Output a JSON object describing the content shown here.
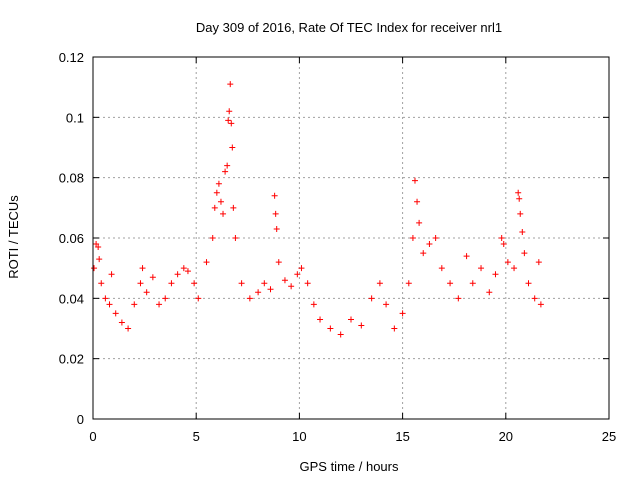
{
  "chart_data": {
    "type": "scatter",
    "title": "Day 309 of 2016, Rate Of TEC Index for receiver nrl1",
    "xlabel": "GPS time / hours",
    "ylabel": "ROTI / TECUs",
    "xlim": [
      0,
      25
    ],
    "ylim": [
      0,
      0.12
    ],
    "x_ticks": [
      0,
      5,
      10,
      15,
      20,
      25
    ],
    "x_tick_labels": [
      "0",
      "5",
      "10",
      "15",
      "20",
      "25"
    ],
    "y_ticks": [
      0,
      0.02,
      0.04,
      0.06,
      0.08,
      0.1,
      0.12
    ],
    "y_tick_labels": [
      "0",
      "0.02",
      "0.04",
      "0.06",
      "0.08",
      "0.1",
      "0.12"
    ],
    "grid": true,
    "marker": "+",
    "marker_color": "#ff0000",
    "series": [
      {
        "points": [
          [
            0.05,
            0.05
          ],
          [
            0.15,
            0.058
          ],
          [
            0.25,
            0.057
          ],
          [
            0.3,
            0.053
          ],
          [
            0.4,
            0.045
          ],
          [
            0.6,
            0.04
          ],
          [
            0.8,
            0.038
          ],
          [
            0.9,
            0.048
          ],
          [
            1.1,
            0.035
          ],
          [
            1.4,
            0.032
          ],
          [
            1.7,
            0.03
          ],
          [
            2.0,
            0.038
          ],
          [
            2.3,
            0.045
          ],
          [
            2.4,
            0.05
          ],
          [
            2.6,
            0.042
          ],
          [
            2.9,
            0.047
          ],
          [
            3.2,
            0.038
          ],
          [
            3.5,
            0.04
          ],
          [
            3.8,
            0.045
          ],
          [
            4.1,
            0.048
          ],
          [
            4.4,
            0.05
          ],
          [
            4.6,
            0.049
          ],
          [
            4.9,
            0.045
          ],
          [
            5.1,
            0.04
          ],
          [
            5.5,
            0.052
          ],
          [
            5.8,
            0.06
          ],
          [
            5.9,
            0.07
          ],
          [
            6.0,
            0.075
          ],
          [
            6.1,
            0.078
          ],
          [
            6.2,
            0.072
          ],
          [
            6.3,
            0.068
          ],
          [
            6.4,
            0.082
          ],
          [
            6.5,
            0.084
          ],
          [
            6.55,
            0.099
          ],
          [
            6.6,
            0.102
          ],
          [
            6.65,
            0.111
          ],
          [
            6.7,
            0.098
          ],
          [
            6.75,
            0.09
          ],
          [
            6.8,
            0.07
          ],
          [
            6.9,
            0.06
          ],
          [
            7.2,
            0.045
          ],
          [
            7.6,
            0.04
          ],
          [
            8.0,
            0.042
          ],
          [
            8.3,
            0.045
          ],
          [
            8.6,
            0.043
          ],
          [
            8.8,
            0.074
          ],
          [
            8.85,
            0.068
          ],
          [
            8.9,
            0.063
          ],
          [
            9.0,
            0.052
          ],
          [
            9.3,
            0.046
          ],
          [
            9.6,
            0.044
          ],
          [
            9.9,
            0.048
          ],
          [
            10.1,
            0.05
          ],
          [
            10.4,
            0.045
          ],
          [
            10.7,
            0.038
          ],
          [
            11.0,
            0.033
          ],
          [
            11.5,
            0.03
          ],
          [
            12.0,
            0.028
          ],
          [
            12.5,
            0.033
          ],
          [
            13.0,
            0.031
          ],
          [
            13.5,
            0.04
          ],
          [
            13.9,
            0.045
          ],
          [
            14.2,
            0.038
          ],
          [
            14.6,
            0.03
          ],
          [
            15.0,
            0.035
          ],
          [
            15.3,
            0.045
          ],
          [
            15.5,
            0.06
          ],
          [
            15.6,
            0.079
          ],
          [
            15.7,
            0.072
          ],
          [
            15.8,
            0.065
          ],
          [
            16.0,
            0.055
          ],
          [
            16.3,
            0.058
          ],
          [
            16.6,
            0.06
          ],
          [
            16.9,
            0.05
          ],
          [
            17.3,
            0.045
          ],
          [
            17.7,
            0.04
          ],
          [
            18.1,
            0.054
          ],
          [
            18.4,
            0.045
          ],
          [
            18.8,
            0.05
          ],
          [
            19.2,
            0.042
          ],
          [
            19.5,
            0.048
          ],
          [
            19.8,
            0.06
          ],
          [
            19.9,
            0.058
          ],
          [
            20.1,
            0.052
          ],
          [
            20.4,
            0.05
          ],
          [
            20.6,
            0.075
          ],
          [
            20.65,
            0.073
          ],
          [
            20.7,
            0.068
          ],
          [
            20.8,
            0.062
          ],
          [
            20.9,
            0.055
          ],
          [
            21.1,
            0.045
          ],
          [
            21.4,
            0.04
          ],
          [
            21.6,
            0.052
          ],
          [
            21.7,
            0.038
          ]
        ]
      }
    ]
  }
}
